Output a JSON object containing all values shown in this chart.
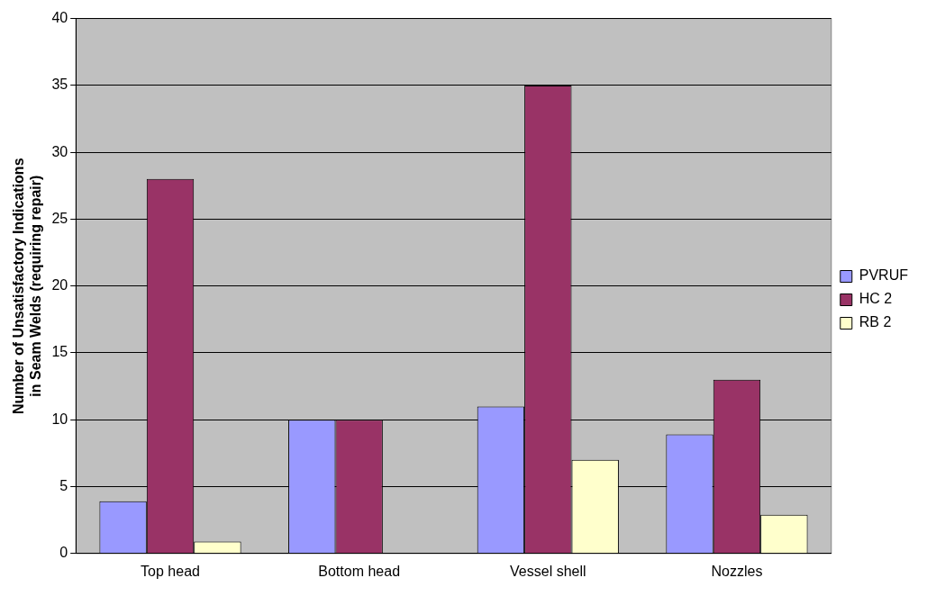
{
  "chart_data": {
    "type": "bar",
    "ylabel": "Number of Unsatisfactory Indications\nin Seam Welds (requiring repair)",
    "categories": [
      "Top head",
      "Bottom head",
      "Vessel shell",
      "Nozzles"
    ],
    "series": [
      {
        "name": "PVRUF",
        "color": "#9999ff",
        "values": [
          3.9,
          10,
          11,
          8.9
        ]
      },
      {
        "name": "HC 2",
        "color": "#993366",
        "values": [
          28,
          10,
          35,
          13
        ]
      },
      {
        "name": "RB 2",
        "color": "#ffffcc",
        "values": [
          0.9,
          0,
          7,
          2.9
        ]
      }
    ],
    "ylim": [
      0,
      40
    ],
    "yticks": [
      0,
      5,
      10,
      15,
      20,
      25,
      30,
      35,
      40
    ],
    "grid": "y",
    "legend": "right"
  }
}
